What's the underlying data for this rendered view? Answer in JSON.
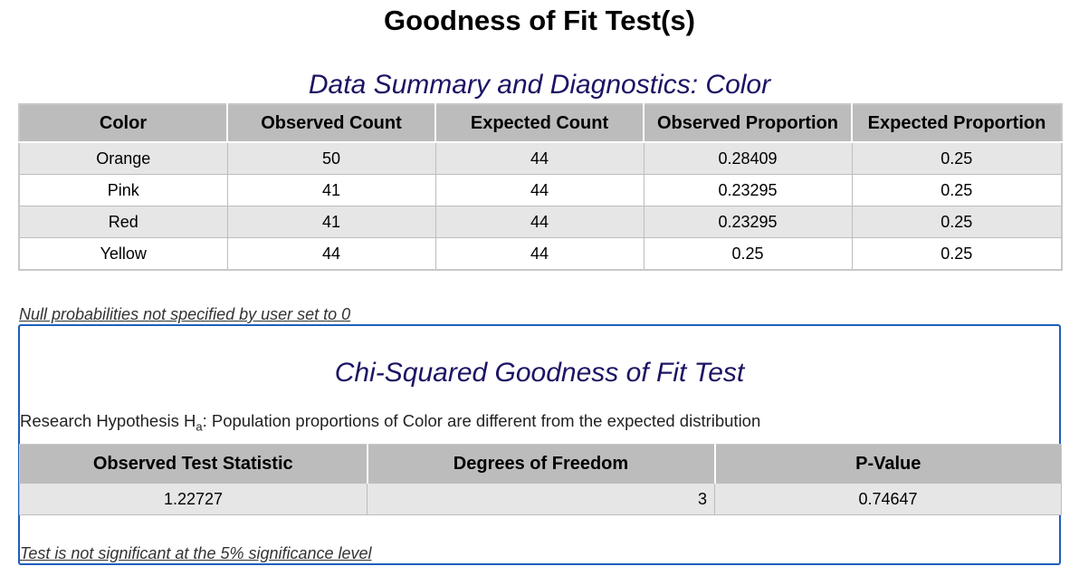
{
  "page_title": "Goodness of Fit Test(s)",
  "summary": {
    "heading": "Data Summary and Diagnostics: Color",
    "columns": [
      "Color",
      "Observed Count",
      "Expected Count",
      "Observed Proportion",
      "Expected Proportion"
    ],
    "rows": [
      [
        "Orange",
        "50",
        "44",
        "0.28409",
        "0.25"
      ],
      [
        "Pink",
        "41",
        "44",
        "0.23295",
        "0.25"
      ],
      [
        "Red",
        "41",
        "44",
        "0.23295",
        "0.25"
      ],
      [
        "Yellow",
        "44",
        "44",
        "0.25",
        "0.25"
      ]
    ]
  },
  "note": "Null probabilities not specified by user set to 0",
  "chi_squared": {
    "heading": "Chi-Squared Goodness of Fit Test",
    "hypothesis_prefix": "Research Hypothesis H",
    "hypothesis_sub": "a",
    "hypothesis_text": ": Population proportions of Color are different from the expected distribution",
    "columns": [
      "Observed Test Statistic",
      "Degrees of Freedom",
      "P-Value"
    ],
    "values": [
      "1.22727",
      "3",
      "0.74647"
    ],
    "conclusion": "Test is not significant at the 5% significance level"
  }
}
